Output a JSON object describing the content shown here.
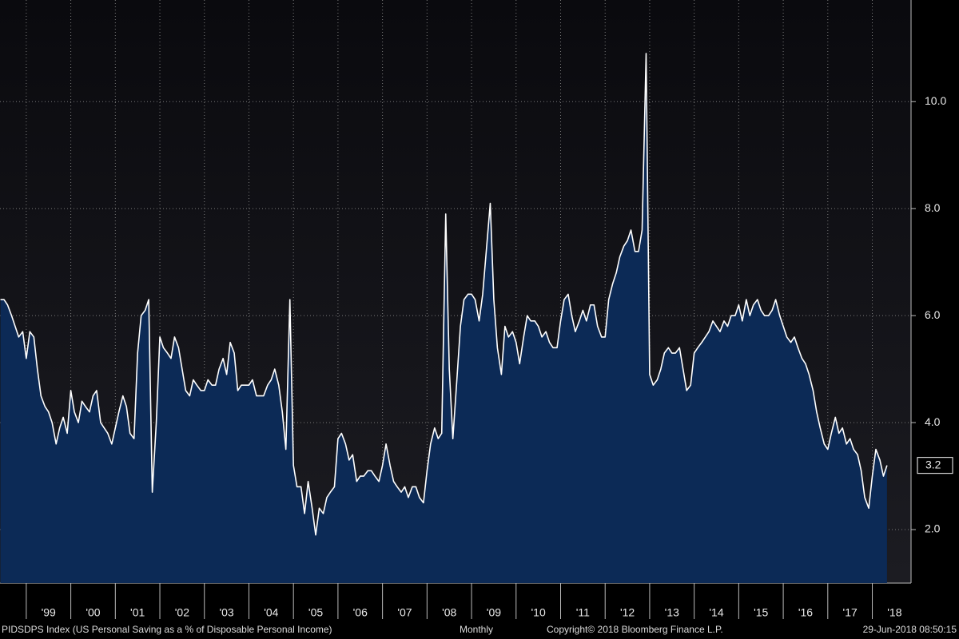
{
  "chart_data": {
    "type": "area",
    "title": "PIDSDPS Index (US Personal Saving as a % of Disposable Personal Income)",
    "frequency": "Monthly",
    "copyright": "Copyright© 2018 Bloomberg Finance L.P.",
    "timestamp": "29-Jun-2018 08:50:15",
    "xlim": [
      1998.41,
      2018.87
    ],
    "ylim": [
      1.0,
      11.9
    ],
    "grid": true,
    "xticks": [
      {
        "value": 1999,
        "label": "'99"
      },
      {
        "value": 2000,
        "label": "'00"
      },
      {
        "value": 2001,
        "label": "'01"
      },
      {
        "value": 2002,
        "label": "'02"
      },
      {
        "value": 2003,
        "label": "'03"
      },
      {
        "value": 2004,
        "label": "'04"
      },
      {
        "value": 2005,
        "label": "'05"
      },
      {
        "value": 2006,
        "label": "'06"
      },
      {
        "value": 2007,
        "label": "'07"
      },
      {
        "value": 2008,
        "label": "'08"
      },
      {
        "value": 2009,
        "label": "'09"
      },
      {
        "value": 2010,
        "label": "'10"
      },
      {
        "value": 2011,
        "label": "'11"
      },
      {
        "value": 2012,
        "label": "'12"
      },
      {
        "value": 2013,
        "label": "'13"
      },
      {
        "value": 2014,
        "label": "'14"
      },
      {
        "value": 2015,
        "label": "'15"
      },
      {
        "value": 2016,
        "label": "'16"
      },
      {
        "value": 2017,
        "label": "'17"
      },
      {
        "value": 2018,
        "label": "'18"
      }
    ],
    "yticks": [
      {
        "value": 2,
        "label": "2.0"
      },
      {
        "value": 4,
        "label": "4.0"
      },
      {
        "value": 6,
        "label": "6.0"
      },
      {
        "value": 8,
        "label": "8.0"
      },
      {
        "value": 10,
        "label": "10.0"
      }
    ],
    "x": [
      1998.42,
      1998.5,
      1998.58,
      1998.67,
      1998.75,
      1998.83,
      1998.92,
      1999,
      1999.08,
      1999.17,
      1999.25,
      1999.33,
      1999.42,
      1999.5,
      1999.58,
      1999.67,
      1999.75,
      1999.83,
      1999.92,
      2000,
      2000.08,
      2000.17,
      2000.25,
      2000.33,
      2000.42,
      2000.5,
      2000.58,
      2000.67,
      2000.75,
      2000.83,
      2000.92,
      2001,
      2001.08,
      2001.17,
      2001.25,
      2001.33,
      2001.42,
      2001.5,
      2001.58,
      2001.67,
      2001.75,
      2001.83,
      2001.92,
      2002,
      2002.08,
      2002.17,
      2002.25,
      2002.33,
      2002.42,
      2002.5,
      2002.58,
      2002.67,
      2002.75,
      2002.83,
      2002.92,
      2003,
      2003.08,
      2003.17,
      2003.25,
      2003.33,
      2003.42,
      2003.5,
      2003.58,
      2003.67,
      2003.75,
      2003.83,
      2003.92,
      2004,
      2004.08,
      2004.17,
      2004.25,
      2004.33,
      2004.42,
      2004.5,
      2004.58,
      2004.67,
      2004.75,
      2004.83,
      2004.92,
      2005,
      2005.08,
      2005.17,
      2005.25,
      2005.33,
      2005.42,
      2005.5,
      2005.58,
      2005.67,
      2005.75,
      2005.83,
      2005.92,
      2006,
      2006.08,
      2006.17,
      2006.25,
      2006.33,
      2006.42,
      2006.5,
      2006.58,
      2006.67,
      2006.75,
      2006.83,
      2006.92,
      2007,
      2007.08,
      2007.17,
      2007.25,
      2007.33,
      2007.42,
      2007.5,
      2007.58,
      2007.67,
      2007.75,
      2007.83,
      2007.92,
      2008,
      2008.08,
      2008.17,
      2008.25,
      2008.33,
      2008.42,
      2008.5,
      2008.58,
      2008.67,
      2008.75,
      2008.83,
      2008.92,
      2009,
      2009.08,
      2009.17,
      2009.25,
      2009.33,
      2009.42,
      2009.5,
      2009.58,
      2009.67,
      2009.75,
      2009.83,
      2009.92,
      2010,
      2010.08,
      2010.17,
      2010.25,
      2010.33,
      2010.42,
      2010.5,
      2010.58,
      2010.67,
      2010.75,
      2010.83,
      2010.92,
      2011,
      2011.08,
      2011.17,
      2011.25,
      2011.33,
      2011.42,
      2011.5,
      2011.58,
      2011.67,
      2011.75,
      2011.83,
      2011.92,
      2012,
      2012.08,
      2012.17,
      2012.25,
      2012.33,
      2012.42,
      2012.5,
      2012.58,
      2012.67,
      2012.75,
      2012.83,
      2012.92,
      2013,
      2013.08,
      2013.17,
      2013.25,
      2013.33,
      2013.42,
      2013.5,
      2013.58,
      2013.67,
      2013.75,
      2013.83,
      2013.92,
      2014,
      2014.08,
      2014.17,
      2014.25,
      2014.33,
      2014.42,
      2014.5,
      2014.58,
      2014.67,
      2014.75,
      2014.83,
      2014.92,
      2015,
      2015.08,
      2015.17,
      2015.25,
      2015.33,
      2015.42,
      2015.5,
      2015.58,
      2015.67,
      2015.75,
      2015.83,
      2015.92,
      2016,
      2016.08,
      2016.17,
      2016.25,
      2016.33,
      2016.42,
      2016.5,
      2016.58,
      2016.67,
      2016.75,
      2016.83,
      2016.92,
      2017,
      2017.08,
      2017.17,
      2017.25,
      2017.33,
      2017.42,
      2017.5,
      2017.58,
      2017.67,
      2017.75,
      2017.83,
      2017.92,
      2018,
      2018.08,
      2018.17,
      2018.25,
      2018.33
    ],
    "series": [
      {
        "color": "#ffffff",
        "fill": "#0c2a56",
        "values": [
          6.3,
          6.3,
          6.2,
          6.0,
          5.8,
          5.6,
          5.7,
          5.2,
          5.7,
          5.6,
          5.0,
          4.5,
          4.3,
          4.2,
          4.0,
          3.6,
          3.9,
          4.1,
          3.8,
          4.6,
          4.2,
          4.0,
          4.4,
          4.3,
          4.2,
          4.5,
          4.6,
          4.0,
          3.9,
          3.8,
          3.6,
          3.9,
          4.2,
          4.5,
          4.3,
          3.8,
          3.7,
          5.3,
          6.0,
          6.1,
          6.3,
          2.7,
          4.0,
          5.6,
          5.4,
          5.3,
          5.2,
          5.6,
          5.4,
          5.0,
          4.6,
          4.5,
          4.8,
          4.7,
          4.6,
          4.6,
          4.8,
          4.7,
          4.7,
          5.0,
          5.2,
          4.9,
          5.5,
          5.3,
          4.6,
          4.7,
          4.7,
          4.7,
          4.8,
          4.5,
          4.5,
          4.5,
          4.7,
          4.8,
          5.0,
          4.7,
          4.2,
          3.5,
          6.3,
          3.2,
          2.8,
          2.8,
          2.3,
          2.9,
          2.4,
          1.9,
          2.4,
          2.3,
          2.6,
          2.7,
          2.8,
          3.7,
          3.8,
          3.6,
          3.3,
          3.4,
          2.9,
          3.0,
          3.0,
          3.1,
          3.1,
          3.0,
          2.9,
          3.2,
          3.6,
          3.2,
          2.9,
          2.8,
          2.7,
          2.8,
          2.6,
          2.8,
          2.8,
          2.6,
          2.5,
          3.1,
          3.6,
          3.9,
          3.7,
          3.8,
          7.9,
          5.0,
          3.7,
          4.8,
          5.8,
          6.3,
          6.4,
          6.4,
          6.3,
          5.9,
          6.4,
          7.2,
          8.1,
          6.3,
          5.4,
          4.9,
          5.8,
          5.6,
          5.7,
          5.5,
          5.1,
          5.6,
          6.0,
          5.9,
          5.9,
          5.8,
          5.6,
          5.7,
          5.5,
          5.4,
          5.4,
          5.9,
          6.3,
          6.4,
          6.0,
          5.7,
          5.9,
          6.1,
          5.9,
          6.2,
          6.2,
          5.8,
          5.6,
          5.6,
          6.3,
          6.6,
          6.8,
          7.1,
          7.3,
          7.4,
          7.6,
          7.2,
          7.2,
          7.6,
          10.9,
          4.9,
          4.7,
          4.8,
          5.0,
          5.3,
          5.4,
          5.3,
          5.3,
          5.4,
          5.0,
          4.6,
          4.7,
          5.3,
          5.4,
          5.5,
          5.6,
          5.7,
          5.9,
          5.8,
          5.7,
          5.9,
          5.8,
          6.0,
          6.0,
          6.2,
          5.9,
          6.3,
          6.0,
          6.2,
          6.3,
          6.1,
          6.0,
          6.0,
          6.1,
          6.3,
          6.0,
          5.8,
          5.6,
          5.5,
          5.6,
          5.4,
          5.2,
          5.1,
          4.9,
          4.6,
          4.2,
          3.9,
          3.6,
          3.5,
          3.8,
          4.1,
          3.8,
          3.9,
          3.6,
          3.7,
          3.5,
          3.4,
          3.1,
          2.6,
          2.4,
          3.0,
          3.5,
          3.3,
          3.0,
          3.2
        ]
      }
    ]
  }
}
